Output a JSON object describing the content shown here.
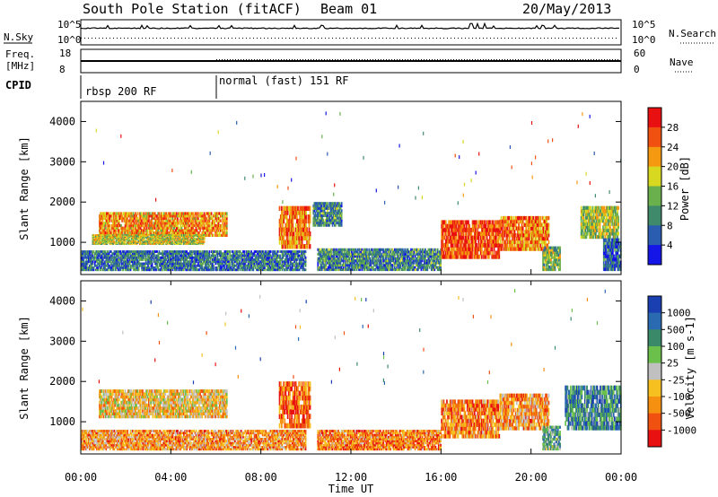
{
  "header": {
    "station": "South Pole Station (fitACF)",
    "beam": "Beam 01",
    "date": "20/May/2013"
  },
  "panels": {
    "nsky_label": "N.Sky",
    "nsearch_label": "N.Search",
    "nsky_ticks": [
      "10^5",
      "10^0"
    ],
    "freq_label_line1": "Freq.",
    "freq_label_line2": "[MHz]",
    "freq_ticks": [
      "18",
      "8"
    ],
    "nave_label": "Nave",
    "nave_ticks": [
      "60",
      "0"
    ],
    "cpid_label": "CPID",
    "cpid_modes": [
      "rbsp 200 RF",
      "normal (fast) 151 RF"
    ]
  },
  "chart_data": [
    {
      "type": "heatmap",
      "name": "power",
      "ylabel": "Slant Range [km]",
      "yticks": [
        "1000",
        "2000",
        "3000",
        "4000"
      ],
      "xlabel": "Time UT",
      "xticks": [
        "00:00",
        "04:00",
        "08:00",
        "12:00",
        "16:00",
        "20:00",
        "00:00"
      ],
      "colorbar_label": "Power [dB]",
      "colorbar_ticks": [
        "4",
        "8",
        "12",
        "16",
        "20",
        "24",
        "28"
      ],
      "colors": [
        "#1515e8",
        "#2a5db0",
        "#3f8a6a",
        "#6ab04c",
        "#d8d820",
        "#f59a10",
        "#f05010",
        "#e81010"
      ],
      "features": [
        {
          "t0": 0.8,
          "t1": 6.5,
          "r0": 1150,
          "r1": 1750,
          "level": 0.7
        },
        {
          "t0": 0.5,
          "t1": 5.5,
          "r0": 950,
          "r1": 1200,
          "level": 0.55
        },
        {
          "t0": 0.0,
          "t1": 10.0,
          "r0": 300,
          "r1": 800,
          "level": 0.25
        },
        {
          "t0": 8.8,
          "t1": 10.2,
          "r0": 850,
          "r1": 1900,
          "level": 0.75
        },
        {
          "t0": 10.3,
          "t1": 11.6,
          "r0": 1400,
          "r1": 2000,
          "level": 0.3
        },
        {
          "t0": 10.5,
          "t1": 16.0,
          "r0": 300,
          "r1": 850,
          "level": 0.3
        },
        {
          "t0": 16.0,
          "t1": 18.6,
          "r0": 600,
          "r1": 1550,
          "level": 0.85
        },
        {
          "t0": 18.6,
          "t1": 20.8,
          "r0": 800,
          "r1": 1650,
          "level": 0.75
        },
        {
          "t0": 20.5,
          "t1": 21.3,
          "r0": 300,
          "r1": 900,
          "level": 0.45
        },
        {
          "t0": 22.2,
          "t1": 23.9,
          "r0": 1100,
          "r1": 1900,
          "level": 0.5
        },
        {
          "t0": 23.2,
          "t1": 24.0,
          "r0": 300,
          "r1": 1100,
          "level": 0.2
        }
      ]
    },
    {
      "type": "heatmap",
      "name": "velocity",
      "ylabel": "Slant Range [km]",
      "yticks": [
        "1000",
        "2000",
        "3000",
        "4000"
      ],
      "xlabel": "Time UT",
      "xticks": [
        "00:00",
        "04:00",
        "08:00",
        "12:00",
        "16:00",
        "20:00",
        "00:00"
      ],
      "colorbar_label": "Velocity [m s-1]",
      "colorbar_ticks": [
        "1000",
        "500",
        "100",
        "25",
        "-25",
        "-100",
        "-500",
        "-1000"
      ],
      "colors": [
        "#1a3fb0",
        "#2a6ab0",
        "#3a8a6a",
        "#6ac04a",
        "#c0c0c0",
        "#f5c020",
        "#f59010",
        "#f05010",
        "#e81010"
      ],
      "features": [
        {
          "t0": 0.8,
          "t1": 6.5,
          "r0": 1100,
          "r1": 1800,
          "level": 0.6
        },
        {
          "t0": 0.0,
          "t1": 10.0,
          "r0": 300,
          "r1": 800,
          "level": 0.7
        },
        {
          "t0": 8.8,
          "t1": 10.2,
          "r0": 850,
          "r1": 2000,
          "level": 0.8
        },
        {
          "t0": 10.5,
          "t1": 16.0,
          "r0": 300,
          "r1": 800,
          "level": 0.75
        },
        {
          "t0": 16.0,
          "t1": 18.6,
          "r0": 600,
          "r1": 1550,
          "level": 0.75
        },
        {
          "t0": 18.6,
          "t1": 20.8,
          "r0": 800,
          "r1": 1700,
          "level": 0.7
        },
        {
          "t0": 20.5,
          "t1": 21.3,
          "r0": 300,
          "r1": 900,
          "level": 0.35
        },
        {
          "t0": 21.5,
          "t1": 24.0,
          "r0": 800,
          "r1": 1900,
          "level": 0.25
        }
      ]
    }
  ]
}
